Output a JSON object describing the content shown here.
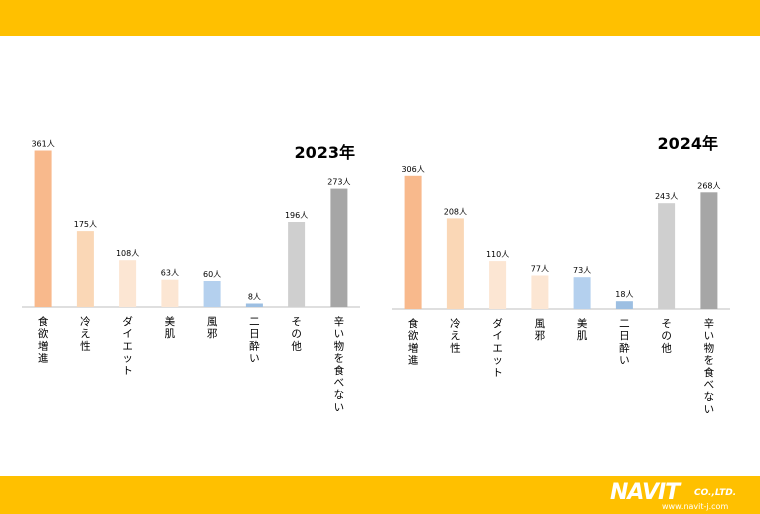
{
  "chart_data": [
    {
      "type": "bar",
      "title": "2023年",
      "categories": [
        "食欲増進",
        "冷え性",
        "ダイエット",
        "美肌",
        "風邪",
        "二日酔い",
        "その他",
        "辛い物を食べない"
      ],
      "values": [
        361,
        175,
        108,
        63,
        60,
        8,
        196,
        273
      ],
      "value_labels": [
        "361人",
        "175人",
        "108人",
        "63人",
        "60人",
        "8人",
        "196人",
        "273人"
      ],
      "colors": [
        "#F8B98C",
        "#FAD7B6",
        "#FCE6D3",
        "#FCE6D3",
        "#B4D0EE",
        "#9DBFE2",
        "#CFCFCF",
        "#A6A6A6"
      ],
      "ylim": [
        0,
        400
      ],
      "grid": false
    },
    {
      "type": "bar",
      "title": "2024年",
      "categories": [
        "食欲増進",
        "冷え性",
        "ダイエット",
        "風邪",
        "美肌",
        "二日酔い",
        "その他",
        "辛い物を食べない"
      ],
      "values": [
        306,
        208,
        110,
        77,
        73,
        18,
        243,
        268
      ],
      "value_labels": [
        "306人",
        "208人",
        "110人",
        "77人",
        "73人",
        "18人",
        "243人",
        "268人"
      ],
      "colors": [
        "#F8B98C",
        "#FAD7B6",
        "#FCE6D3",
        "#FCE6D3",
        "#B4D0EE",
        "#9DBFE2",
        "#CFCFCF",
        "#A6A6A6"
      ],
      "ylim": [
        0,
        400
      ],
      "grid": false
    }
  ],
  "logo": {
    "brand": "NAVIT",
    "suffix": "CO.,LTD.",
    "url": "www.navit-j.com"
  },
  "colors": {
    "band": "#FFC000",
    "axis": "#BFBFBF"
  }
}
